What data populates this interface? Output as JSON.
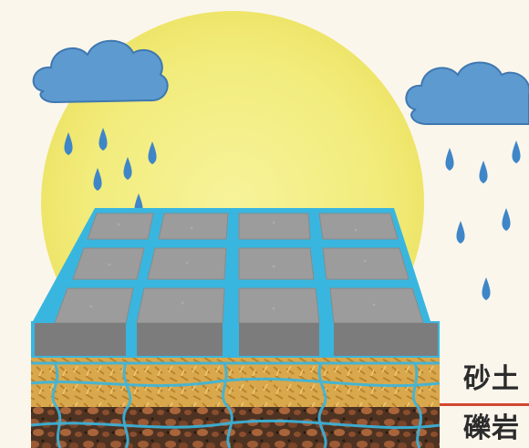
{
  "colors": {
    "sun": "#f4ef86",
    "cloud": "#5d9ad0",
    "rain": "#3f86c8",
    "paver_top": "#9a9a9a",
    "paver_side": "#7b7b7b",
    "gap_water": "#39b6df",
    "sand": "#d8a84a",
    "gravel": "#5a3a26",
    "divider": "#d2472f"
  },
  "icons": [
    "sun-icon",
    "cloud-icon",
    "raindrop-icon"
  ],
  "labels": {
    "sand": "砂土",
    "gravel": "礫岩"
  }
}
